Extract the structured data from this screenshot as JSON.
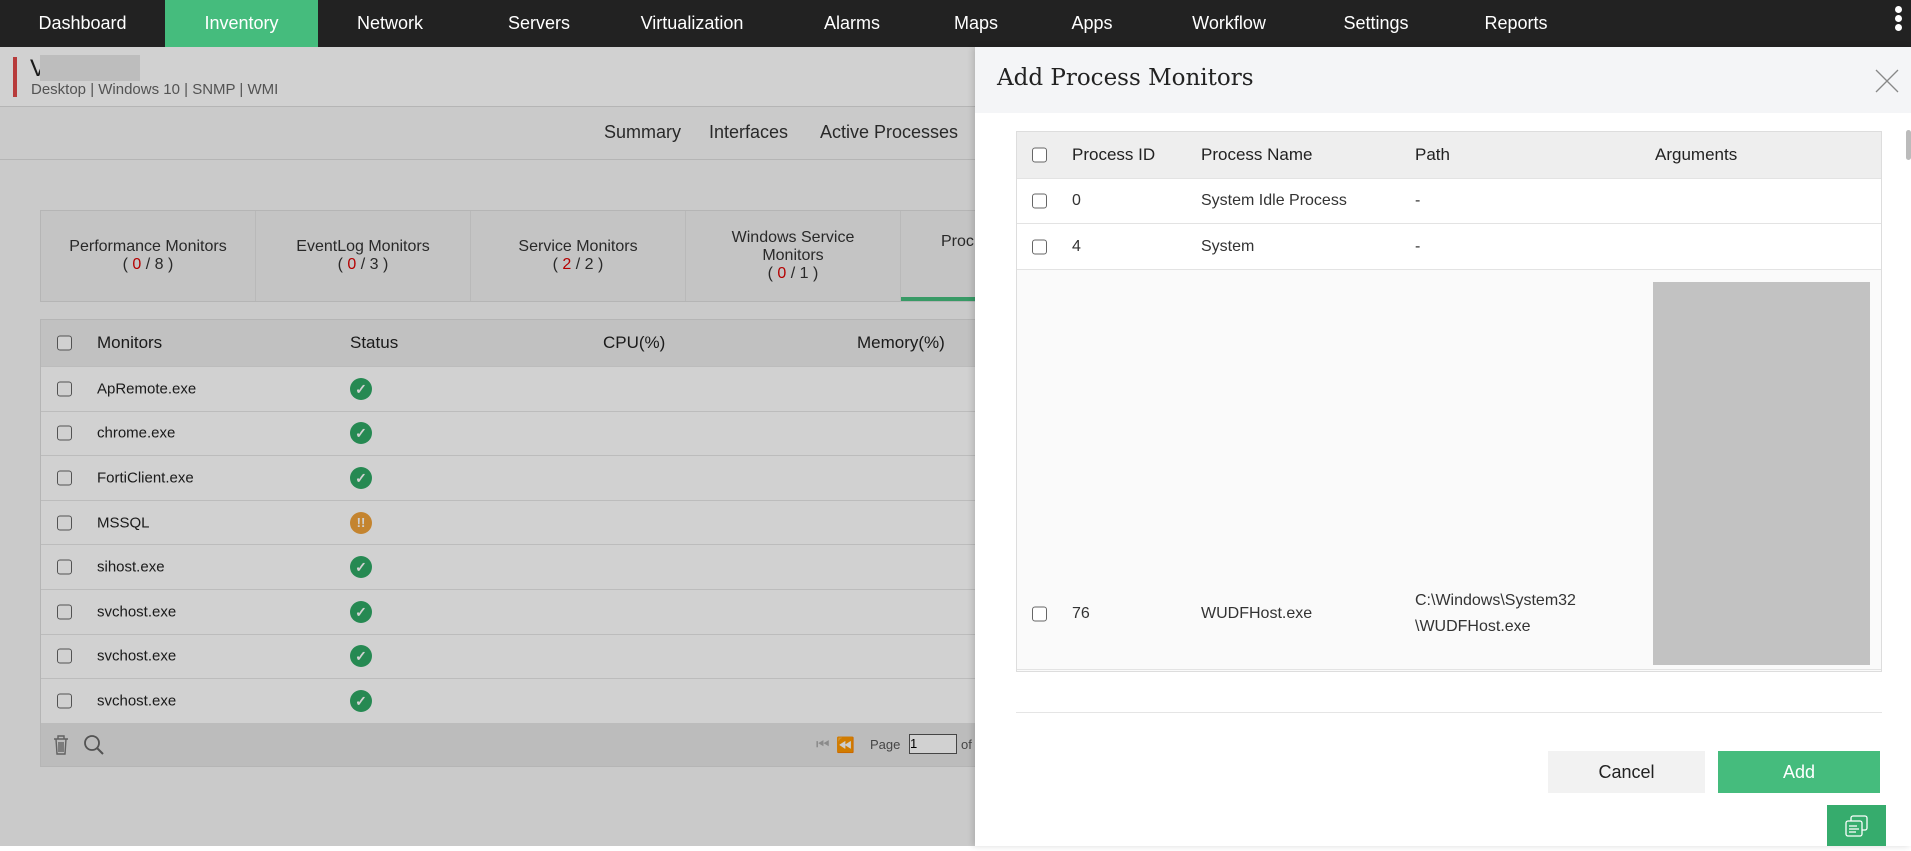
{
  "nav": {
    "items": [
      "Dashboard",
      "Inventory",
      "Network",
      "Servers",
      "Virtualization",
      "Alarms",
      "Maps",
      "Apps",
      "Workflow",
      "Settings",
      "Reports"
    ],
    "active": "Inventory",
    "accent": "#45bc7d"
  },
  "device": {
    "name": "V",
    "tags": "Desktop | Windows 10  | SNMP  | WMI"
  },
  "subnav": [
    "Summary",
    "Interfaces",
    "Active Processes"
  ],
  "tiles": [
    {
      "label": "Performance Monitors",
      "bad": "0",
      "total": "8"
    },
    {
      "label": "EventLog Monitors",
      "bad": "0",
      "total": "3"
    },
    {
      "label": "Service Monitors",
      "bad": "2",
      "total": "2"
    },
    {
      "label": "Windows Service Monitors",
      "bad": "0",
      "total": "1"
    },
    {
      "label": "Proc",
      "bad": "",
      "total": ""
    }
  ],
  "monitors": {
    "columns": [
      "Monitors",
      "Status",
      "CPU(%)",
      "Memory(%)"
    ],
    "rows": [
      {
        "name": "ApRemote.exe",
        "status": "ok"
      },
      {
        "name": "chrome.exe",
        "status": "ok"
      },
      {
        "name": "FortiClient.exe",
        "status": "ok"
      },
      {
        "name": "MSSQL",
        "status": "warning"
      },
      {
        "name": "sihost.exe",
        "status": "ok"
      },
      {
        "name": "svchost.exe",
        "status": "ok"
      },
      {
        "name": "svchost.exe",
        "status": "ok"
      },
      {
        "name": "svchost.exe",
        "status": "ok"
      }
    ],
    "pager": {
      "page_label": "Page",
      "page": "1",
      "of": "of"
    }
  },
  "modal": {
    "title": "Add Process Monitors",
    "columns": [
      "Process ID",
      "Process Name",
      "Path",
      "Arguments"
    ],
    "rows": [
      {
        "pid": "0",
        "name": "System Idle Process",
        "path": "-",
        "args": ""
      },
      {
        "pid": "4",
        "name": "System",
        "path": "-",
        "args": ""
      },
      {
        "pid": "76",
        "name": "WUDFHost.exe",
        "path": "C:\\Windows\\System32\\WUDFHost.exe",
        "args": ""
      }
    ],
    "cancel": "Cancel",
    "add": "Add"
  }
}
